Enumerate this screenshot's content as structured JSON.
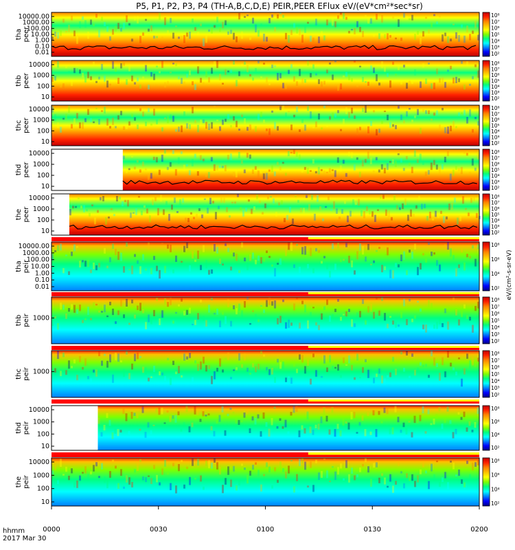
{
  "title": "P5, P1, P2, P3, P4 (TH-A,B,C,D,E) PEIR,PEER EFlux eV/(eV*cm²*sec*sr)",
  "time_axis": {
    "label_line1": "hhmm",
    "label_line2": "2017 Mar 30",
    "ticks": [
      "0000",
      "0030",
      "0100",
      "0130",
      "0200"
    ]
  },
  "colorbar_unit": "eV/(cm²-s-sr-eV)",
  "colors": {
    "palette": [
      "#000080",
      "#0000ff",
      "#0080ff",
      "#00ffff",
      "#00ff80",
      "#80ff00",
      "#ffff00",
      "#ffc000",
      "#ff8000",
      "#ff2000",
      "#c00000"
    ],
    "flag_red": "#ff0000",
    "flag_yellow": "#ffff00",
    "line": "#000000"
  },
  "chart_data": [
    {
      "type": "heatmap",
      "ylabel": "tha\npeer",
      "yticks": [
        "10000.00",
        "1000.00",
        "100.00",
        "10.00",
        "1.00",
        "0.10",
        "0.01"
      ],
      "cbticks": [
        "10⁸",
        "10⁷",
        "10⁶",
        "10⁵",
        "10⁴",
        "10³",
        "10²"
      ],
      "data_gap": [],
      "overlay_line": true
    },
    {
      "type": "heatmap",
      "ylabel": "thb\npeer",
      "yticks": [
        "10000",
        "1000",
        "100",
        "10"
      ],
      "cbticks": [
        "10⁸",
        "10⁷",
        "10⁶",
        "10⁵",
        "10⁴",
        "10³",
        "10²"
      ],
      "data_gap": []
    },
    {
      "type": "heatmap",
      "ylabel": "thc\npeer",
      "yticks": [
        "10000",
        "1000",
        "100",
        "10"
      ],
      "cbticks": [
        "10⁸",
        "10⁷",
        "10⁶",
        "10⁵",
        "10⁴",
        "10³",
        "10²"
      ],
      "data_gap": []
    },
    {
      "type": "heatmap",
      "ylabel": "thd\npeer",
      "yticks": [
        "10000",
        "1000",
        "100",
        "10"
      ],
      "cbticks": [
        "10⁸",
        "10⁷",
        "10⁶",
        "10⁵",
        "10⁴",
        "10³",
        "10²"
      ],
      "data_gap": [
        "0000",
        "0020"
      ],
      "overlay_line": true
    },
    {
      "type": "heatmap",
      "ylabel": "the\npeer",
      "yticks": [
        "10000",
        "1000",
        "100",
        "10"
      ],
      "cbticks": [
        "10⁸",
        "10⁷",
        "10⁶",
        "10⁵",
        "10⁴",
        "10³",
        "10²"
      ],
      "data_gap": [
        "0000",
        "0005"
      ],
      "overlay_line": true
    },
    {
      "type": "heatmap",
      "ylabel": "tha\npeir",
      "yticks": [
        "10000.00",
        "1000.00",
        "100.00",
        "10.00",
        "1.00",
        "0.10",
        "0.01"
      ],
      "cbticks": [
        "10⁸",
        "10⁶",
        "10⁴",
        "10²"
      ],
      "data_gap": []
    },
    {
      "type": "heatmap",
      "ylabel": "thb\npeir",
      "yticks": [
        "1000"
      ],
      "cbticks": [
        "10⁸",
        "10⁷",
        "10⁶",
        "10⁵",
        "10⁴",
        "10³",
        "10²"
      ],
      "data_gap": []
    },
    {
      "type": "heatmap",
      "ylabel": "thc\npeir",
      "yticks": [
        "1000"
      ],
      "cbticks": [
        "10⁸",
        "10⁷",
        "10⁶",
        "10⁵",
        "10⁴",
        "10³",
        "10²"
      ],
      "data_gap": []
    },
    {
      "type": "heatmap",
      "ylabel": "thd\npeir",
      "yticks": [
        "10000",
        "1000",
        "100",
        "10"
      ],
      "cbticks": [
        "10⁸",
        "10⁶",
        "10⁴",
        "10²"
      ],
      "data_gap": [
        "0000",
        "0013"
      ]
    },
    {
      "type": "heatmap",
      "ylabel": "the\npeir",
      "yticks": [
        "10000",
        "1000",
        "100",
        "10"
      ],
      "cbticks": [
        "10⁸",
        "10⁶",
        "10⁴",
        "10²"
      ],
      "data_gap": []
    }
  ]
}
